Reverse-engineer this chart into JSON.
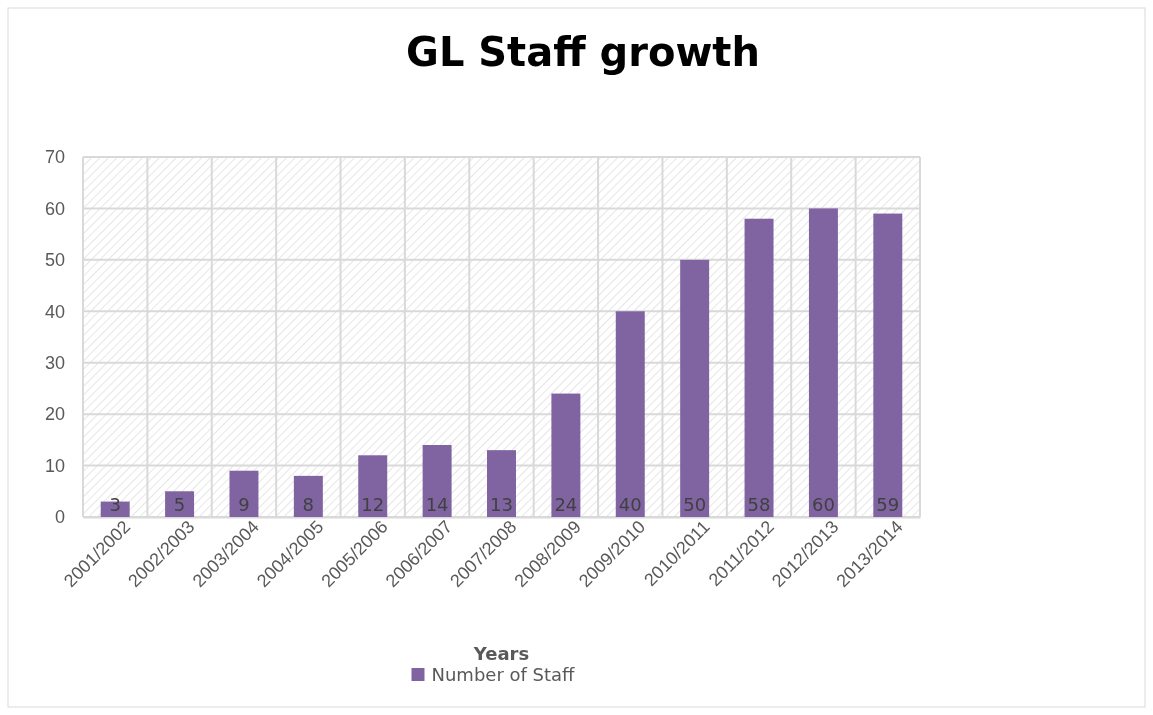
{
  "chart_data": {
    "type": "bar",
    "title": "GL Staff growth",
    "xlabel": "Years",
    "categories": [
      "2001/2002",
      "2002/2003",
      "2003/2004",
      "2004/2005",
      "2005/2006",
      "2006/2007",
      "2007/2008",
      "2008/2009",
      "2009/2010",
      "2010/2011",
      "2011/2012",
      "2012/2013",
      "2013/2014"
    ],
    "series": [
      {
        "name": "Number of Staff",
        "color": "#8064a2",
        "values": [
          3,
          5,
          9,
          8,
          12,
          14,
          13,
          24,
          40,
          50,
          58,
          60,
          59
        ]
      }
    ],
    "ylim": [
      0,
      70
    ],
    "yticks": [
      0,
      10,
      20,
      30,
      40,
      50,
      60,
      70
    ],
    "grid": true,
    "legend": "bottom",
    "data_labels": true
  }
}
